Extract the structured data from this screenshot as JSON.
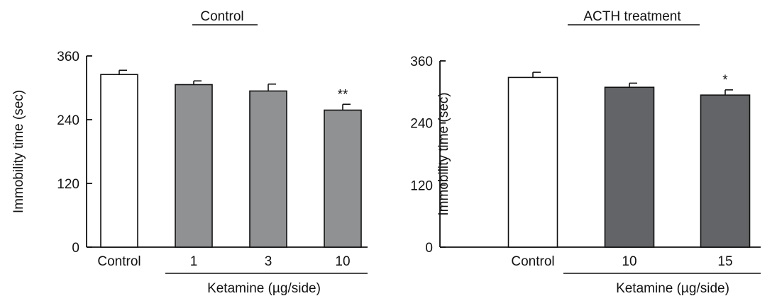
{
  "chart_data": [
    {
      "type": "bar",
      "title": "Control",
      "ylabel": "Immobility time (sec)",
      "xgroup_label": "Ketamine (µg/side)",
      "ylim": [
        0,
        360
      ],
      "yticks": [
        "0",
        "120",
        "240",
        "360"
      ],
      "categories": [
        "Control",
        "1",
        "3",
        "10"
      ],
      "values": [
        325,
        306,
        294,
        258
      ],
      "errors": [
        8,
        7,
        13,
        11
      ],
      "annotations": [
        "",
        "",
        "",
        "**"
      ],
      "bar_colors": [
        "#ffffff",
        "#8f9193",
        "#8f9193",
        "#8f9193"
      ],
      "grid": false
    },
    {
      "type": "bar",
      "title": "ACTH treatment",
      "ylabel": "Immobility time (sec)",
      "xgroup_label": "Ketamine (µg/side)",
      "ylim": [
        0,
        360
      ],
      "yticks": [
        "0",
        "120",
        "240",
        "360"
      ],
      "categories": [
        "Control",
        "10",
        "15"
      ],
      "values": [
        328,
        309,
        294
      ],
      "errors": [
        10,
        8,
        10
      ],
      "annotations": [
        "",
        "",
        "*"
      ],
      "bar_colors": [
        "#ffffff",
        "#636467",
        "#636467"
      ],
      "grid": false
    }
  ]
}
